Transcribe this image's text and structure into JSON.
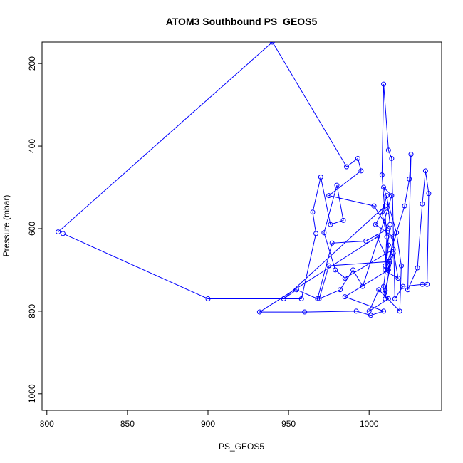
{
  "chart_data": {
    "type": "line",
    "title": "ATOM3 Southbound PS_GEOS5",
    "xlabel": "PS_GEOS5",
    "ylabel": "Pressure (mbar)",
    "xlim": [
      797,
      1045
    ],
    "ylim": [
      1040,
      148
    ],
    "y_reversed": true,
    "grid": false,
    "x_ticks": [
      800,
      850,
      900,
      950,
      1000
    ],
    "y_ticks": [
      200,
      400,
      600,
      800,
      1000
    ],
    "series": [
      {
        "color": "#0000ff",
        "marker": "open-circle",
        "points": [
          [
            807,
            608
          ],
          [
            940,
            148
          ],
          [
            986,
            450
          ],
          [
            993,
            430
          ],
          [
            995,
            460
          ],
          [
            975,
            520
          ],
          [
            1003,
            545
          ],
          [
            1012,
            600
          ],
          [
            998,
            630
          ],
          [
            977,
            635
          ],
          [
            968,
            770
          ],
          [
            955,
            748
          ],
          [
            947,
            770
          ],
          [
            1010,
            545
          ],
          [
            1004,
            590
          ],
          [
            1015,
            620
          ],
          [
            1012,
            700
          ],
          [
            985,
            765
          ],
          [
            1009,
            800
          ],
          [
            1001,
            810
          ],
          [
            992,
            800
          ],
          [
            960,
            802
          ],
          [
            932,
            802
          ],
          [
            1005,
            620
          ],
          [
            1012,
            680
          ],
          [
            975,
            690
          ],
          [
            969,
            770
          ],
          [
            982,
            748
          ],
          [
            990,
            700
          ],
          [
            996,
            740
          ],
          [
            1011,
            560
          ],
          [
            1014,
            520
          ],
          [
            1009,
            500
          ],
          [
            1017,
            610
          ],
          [
            1020,
            690
          ],
          [
            1019,
            800
          ],
          [
            1006,
            748
          ],
          [
            1000,
            800
          ],
          [
            1012,
            770
          ],
          [
            1010,
            750
          ],
          [
            1015,
            660
          ],
          [
            1010,
            700
          ],
          [
            1022,
            545
          ],
          [
            1025,
            480
          ],
          [
            1026,
            420
          ],
          [
            1024,
            748
          ],
          [
            1030,
            695
          ],
          [
            1033,
            540
          ],
          [
            1035,
            460
          ],
          [
            1037,
            515
          ],
          [
            1036,
            735
          ],
          [
            1033,
            735
          ],
          [
            1021,
            740
          ],
          [
            1016,
            770
          ],
          [
            1014,
            430
          ],
          [
            1012,
            410
          ],
          [
            1009,
            250
          ],
          [
            1008,
            470
          ],
          [
            1011,
            620
          ],
          [
            1010,
            690
          ],
          [
            1013,
            590
          ],
          [
            1011,
            520
          ],
          [
            1008,
            560
          ],
          [
            1012,
            640
          ],
          [
            1009,
            740
          ],
          [
            1010,
            770
          ],
          [
            1013,
            680
          ],
          [
            1011,
            705
          ],
          [
            1018,
            720
          ],
          [
            1015,
            650
          ],
          [
            985,
            720
          ],
          [
            979,
            700
          ],
          [
            972,
            610
          ],
          [
            980,
            495
          ],
          [
            984,
            580
          ],
          [
            976,
            590
          ],
          [
            970,
            475
          ],
          [
            965,
            560
          ],
          [
            967,
            612
          ],
          [
            958,
            770
          ],
          [
            900,
            770
          ],
          [
            810,
            612
          ]
        ]
      }
    ]
  }
}
